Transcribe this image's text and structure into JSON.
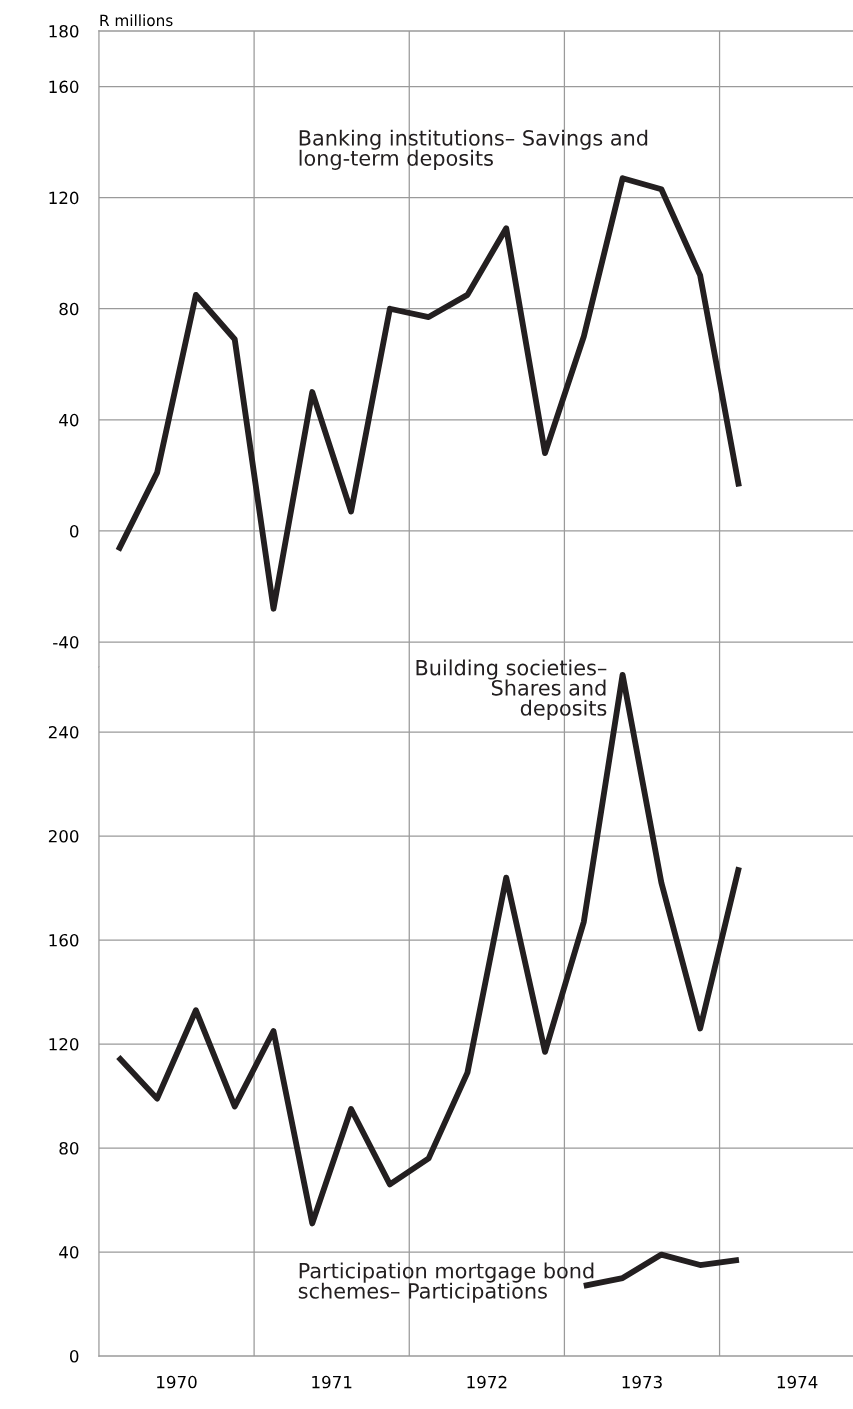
{
  "chart_data": [
    {
      "type": "line",
      "ylabel": "R millions",
      "tick_labels": "y",
      "grid": true,
      "marker": "none",
      "line_style": "solid",
      "xlim": [
        1970,
        1974.86
      ],
      "ylim": [
        -49,
        180
      ],
      "xticks": [
        {
          "value": 1971,
          "label": null
        },
        {
          "value": 1972,
          "label": null
        },
        {
          "value": 1973,
          "label": null
        },
        {
          "value": 1974,
          "label": null
        }
      ],
      "yticks": [
        {
          "value": -40,
          "label": "-40"
        },
        0,
        40,
        80,
        120,
        160,
        180
      ],
      "series": [
        {
          "name": "Banking institutions– Savings and\nlong-term deposits",
          "color": "#231f20",
          "x": [
            1970.125,
            1970.375,
            1970.625,
            1970.875,
            1971.125,
            1971.375,
            1971.625,
            1971.875,
            1972.125,
            1972.375,
            1972.625,
            1972.875,
            1973.125,
            1973.375,
            1973.625,
            1973.875,
            1974.125
          ],
          "values": [
            -7,
            21,
            85,
            69,
            -28,
            50,
            7,
            80,
            77,
            85,
            109,
            28,
            70,
            127,
            123,
            92,
            16
          ]
        }
      ]
    },
    {
      "type": "line",
      "grid": true,
      "marker": "none",
      "line_style": "solid",
      "xlim": [
        1970,
        1974.86
      ],
      "ylim": [
        0,
        265
      ],
      "xticks": [
        {
          "value": 1970.5,
          "label": "1970"
        },
        {
          "value": 1971,
          "label": null
        },
        {
          "value": 1971.5,
          "label": "1971"
        },
        {
          "value": 1972,
          "label": null
        },
        {
          "value": 1972.5,
          "label": "1972"
        },
        {
          "value": 1973,
          "label": null
        },
        {
          "value": 1973.5,
          "label": "1973"
        },
        {
          "value": 1974,
          "label": null
        },
        {
          "value": 1974.5,
          "label": "1974"
        }
      ],
      "yticks": [
        0,
        40,
        80,
        120,
        160,
        200,
        240
      ],
      "series": [
        {
          "name": "Building societies–\nShares and\ndeposits",
          "color": "#231f20",
          "x": [
            1970.125,
            1970.375,
            1970.625,
            1970.875,
            1971.125,
            1971.375,
            1971.625,
            1971.875,
            1972.125,
            1972.375,
            1972.625,
            1972.875,
            1973.125,
            1973.375,
            1973.625,
            1973.875,
            1974.125
          ],
          "values": [
            115,
            99,
            133,
            96,
            125,
            51,
            95,
            66,
            76,
            109,
            184,
            117,
            167,
            262,
            182,
            126,
            188
          ]
        },
        {
          "name": "Participation mortgage bond\nschemes– Participations",
          "color": "#231f20",
          "x": [
            1973.125,
            1973.375,
            1973.625,
            1973.875,
            1974.125
          ],
          "values": [
            27,
            30,
            39,
            35,
            37
          ]
        }
      ]
    }
  ]
}
